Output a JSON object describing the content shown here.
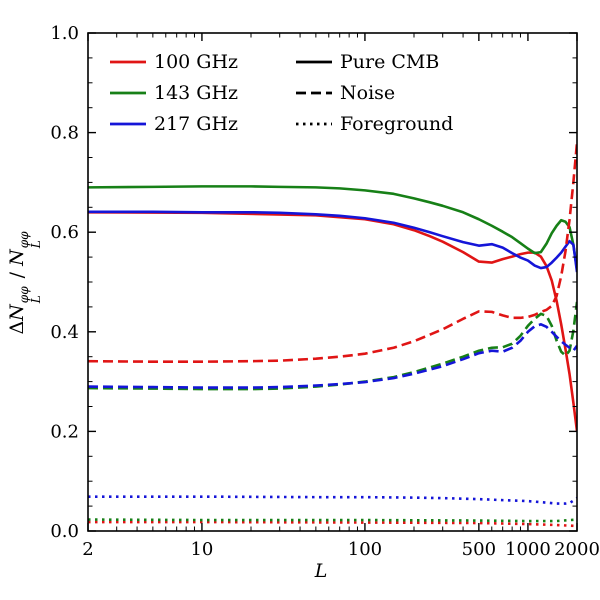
{
  "figure": {
    "background": "#ffffff",
    "frame_color": "#000000"
  },
  "chart_data": {
    "type": "line",
    "title": "",
    "xlabel": "L",
    "ylabel": "ΔN_L^φφ / N_L^φφ",
    "ylabel_parts": {
      "d1": "Δ",
      "n1": "N",
      "sup1": "φφ",
      "sub1": "L",
      "sep": " / ",
      "n2": "N",
      "sup2": "φφ",
      "sub2": "L"
    },
    "x_scale": "log",
    "xlim": [
      2,
      2000
    ],
    "ylim": [
      0.0,
      1.0
    ],
    "grid": false,
    "x_ticks": {
      "major": [
        2,
        10,
        100,
        500,
        1000,
        2000
      ],
      "labels": [
        "2",
        "10",
        "100",
        "500",
        "1000",
        "2000"
      ],
      "minor": [
        3,
        4,
        5,
        6,
        7,
        8,
        9,
        20,
        30,
        40,
        50,
        60,
        70,
        80,
        90,
        200,
        300,
        400,
        600,
        700,
        800,
        900
      ]
    },
    "y_ticks": {
      "major": [
        0.0,
        0.2,
        0.4,
        0.6,
        0.8,
        1.0
      ],
      "labels": [
        "0.0",
        "0.2",
        "0.4",
        "0.6",
        "0.8",
        "1.0"
      ],
      "minor_step": 0.05
    },
    "legend": {
      "position": "upper left",
      "frequencies": [
        {
          "label": "100 GHz",
          "color": "#e01515",
          "dash": "solid"
        },
        {
          "label": "143 GHz",
          "color": "#178017",
          "dash": "solid"
        },
        {
          "label": "217 GHz",
          "color": "#1515d8",
          "dash": "solid"
        }
      ],
      "styles": [
        {
          "label": "Pure CMB",
          "color": "#000000",
          "dash": "solid"
        },
        {
          "label": "Noise",
          "color": "#000000",
          "dash": "dashed"
        },
        {
          "label": "Foreground",
          "color": "#000000",
          "dash": "dotted"
        }
      ]
    },
    "series": [
      {
        "name": "100 GHz Pure CMB",
        "color": "#e01515",
        "dash": "solid",
        "points": [
          [
            2,
            0.64
          ],
          [
            10,
            0.639
          ],
          [
            50,
            0.634
          ],
          [
            100,
            0.626
          ],
          [
            150,
            0.616
          ],
          [
            200,
            0.604
          ],
          [
            250,
            0.592
          ],
          [
            300,
            0.581
          ],
          [
            400,
            0.56
          ],
          [
            500,
            0.541
          ],
          [
            600,
            0.539
          ],
          [
            700,
            0.546
          ],
          [
            800,
            0.551
          ],
          [
            900,
            0.556
          ],
          [
            1000,
            0.559
          ],
          [
            1100,
            0.559
          ],
          [
            1200,
            0.551
          ],
          [
            1300,
            0.532
          ],
          [
            1400,
            0.503
          ],
          [
            1500,
            0.462
          ],
          [
            1600,
            0.415
          ],
          [
            1700,
            0.365
          ],
          [
            1800,
            0.315
          ],
          [
            1900,
            0.258
          ],
          [
            2000,
            0.2
          ]
        ]
      },
      {
        "name": "143 GHz Pure CMB",
        "color": "#178017",
        "dash": "solid",
        "points": [
          [
            2,
            0.69
          ],
          [
            5,
            0.691
          ],
          [
            10,
            0.692
          ],
          [
            20,
            0.692
          ],
          [
            30,
            0.691
          ],
          [
            50,
            0.69
          ],
          [
            70,
            0.688
          ],
          [
            100,
            0.684
          ],
          [
            150,
            0.677
          ],
          [
            200,
            0.668
          ],
          [
            250,
            0.66
          ],
          [
            300,
            0.653
          ],
          [
            400,
            0.64
          ],
          [
            500,
            0.626
          ],
          [
            600,
            0.613
          ],
          [
            700,
            0.601
          ],
          [
            800,
            0.59
          ],
          [
            900,
            0.578
          ],
          [
            1000,
            0.567
          ],
          [
            1100,
            0.558
          ],
          [
            1200,
            0.56
          ],
          [
            1300,
            0.577
          ],
          [
            1400,
            0.598
          ],
          [
            1500,
            0.613
          ],
          [
            1600,
            0.624
          ],
          [
            1700,
            0.621
          ],
          [
            1800,
            0.61
          ],
          [
            1900,
            0.575
          ],
          [
            2000,
            0.525
          ]
        ]
      },
      {
        "name": "217 GHz Pure CMB",
        "color": "#1515d8",
        "dash": "solid",
        "points": [
          [
            2,
            0.641
          ],
          [
            5,
            0.641
          ],
          [
            10,
            0.64
          ],
          [
            20,
            0.64
          ],
          [
            30,
            0.639
          ],
          [
            50,
            0.636
          ],
          [
            70,
            0.633
          ],
          [
            100,
            0.628
          ],
          [
            150,
            0.619
          ],
          [
            200,
            0.609
          ],
          [
            250,
            0.6
          ],
          [
            300,
            0.592
          ],
          [
            400,
            0.58
          ],
          [
            500,
            0.573
          ],
          [
            600,
            0.576
          ],
          [
            700,
            0.569
          ],
          [
            800,
            0.558
          ],
          [
            900,
            0.549
          ],
          [
            1000,
            0.543
          ],
          [
            1100,
            0.533
          ],
          [
            1200,
            0.528
          ],
          [
            1300,
            0.53
          ],
          [
            1400,
            0.539
          ],
          [
            1500,
            0.549
          ],
          [
            1600,
            0.559
          ],
          [
            1700,
            0.571
          ],
          [
            1800,
            0.582
          ],
          [
            1900,
            0.575
          ],
          [
            2000,
            0.52
          ]
        ]
      },
      {
        "name": "100 GHz Noise",
        "color": "#e01515",
        "dash": "dashed",
        "points": [
          [
            2,
            0.341
          ],
          [
            5,
            0.34
          ],
          [
            10,
            0.34
          ],
          [
            20,
            0.341
          ],
          [
            30,
            0.342
          ],
          [
            50,
            0.346
          ],
          [
            70,
            0.35
          ],
          [
            100,
            0.356
          ],
          [
            150,
            0.368
          ],
          [
            200,
            0.381
          ],
          [
            300,
            0.405
          ],
          [
            400,
            0.426
          ],
          [
            500,
            0.441
          ],
          [
            600,
            0.44
          ],
          [
            700,
            0.433
          ],
          [
            800,
            0.428
          ],
          [
            900,
            0.428
          ],
          [
            1000,
            0.43
          ],
          [
            1100,
            0.434
          ],
          [
            1200,
            0.44
          ],
          [
            1300,
            0.444
          ],
          [
            1400,
            0.452
          ],
          [
            1500,
            0.472
          ],
          [
            1600,
            0.512
          ],
          [
            1700,
            0.562
          ],
          [
            1800,
            0.625
          ],
          [
            1900,
            0.7
          ],
          [
            2000,
            0.78
          ]
        ]
      },
      {
        "name": "143 GHz Noise",
        "color": "#178017",
        "dash": "dashed",
        "points": [
          [
            2,
            0.287
          ],
          [
            5,
            0.286
          ],
          [
            10,
            0.285
          ],
          [
            20,
            0.285
          ],
          [
            30,
            0.286
          ],
          [
            50,
            0.29
          ],
          [
            70,
            0.294
          ],
          [
            100,
            0.3
          ],
          [
            150,
            0.309
          ],
          [
            200,
            0.319
          ],
          [
            300,
            0.336
          ],
          [
            400,
            0.35
          ],
          [
            500,
            0.362
          ],
          [
            600,
            0.368
          ],
          [
            700,
            0.369
          ],
          [
            800,
            0.376
          ],
          [
            900,
            0.392
          ],
          [
            1000,
            0.412
          ],
          [
            1100,
            0.426
          ],
          [
            1200,
            0.436
          ],
          [
            1300,
            0.432
          ],
          [
            1400,
            0.412
          ],
          [
            1500,
            0.382
          ],
          [
            1600,
            0.36
          ],
          [
            1700,
            0.352
          ],
          [
            1800,
            0.362
          ],
          [
            1900,
            0.402
          ],
          [
            2000,
            0.46
          ]
        ]
      },
      {
        "name": "217 GHz Noise",
        "color": "#1515d8",
        "dash": "dashed",
        "points": [
          [
            2,
            0.29
          ],
          [
            5,
            0.289
          ],
          [
            10,
            0.288
          ],
          [
            20,
            0.288
          ],
          [
            30,
            0.289
          ],
          [
            50,
            0.292
          ],
          [
            70,
            0.295
          ],
          [
            100,
            0.299
          ],
          [
            150,
            0.307
          ],
          [
            200,
            0.316
          ],
          [
            300,
            0.331
          ],
          [
            400,
            0.345
          ],
          [
            500,
            0.357
          ],
          [
            600,
            0.362
          ],
          [
            700,
            0.36
          ],
          [
            800,
            0.368
          ],
          [
            900,
            0.382
          ],
          [
            1000,
            0.4
          ],
          [
            1100,
            0.411
          ],
          [
            1200,
            0.415
          ],
          [
            1300,
            0.41
          ],
          [
            1400,
            0.4
          ],
          [
            1500,
            0.39
          ],
          [
            1600,
            0.381
          ],
          [
            1700,
            0.374
          ],
          [
            1800,
            0.368
          ],
          [
            1900,
            0.362
          ],
          [
            2000,
            0.372
          ]
        ]
      },
      {
        "name": "100 GHz Foreground",
        "color": "#e01515",
        "dash": "dotted",
        "points": [
          [
            2,
            0.018
          ],
          [
            10,
            0.018
          ],
          [
            100,
            0.017
          ],
          [
            500,
            0.016
          ],
          [
            1000,
            0.014
          ],
          [
            1500,
            0.012
          ],
          [
            2000,
            0.01
          ]
        ]
      },
      {
        "name": "143 GHz Foreground",
        "color": "#178017",
        "dash": "dotted",
        "points": [
          [
            2,
            0.023
          ],
          [
            10,
            0.022
          ],
          [
            100,
            0.022
          ],
          [
            500,
            0.021
          ],
          [
            1000,
            0.02
          ],
          [
            1500,
            0.02
          ],
          [
            2000,
            0.023
          ]
        ]
      },
      {
        "name": "217 GHz Foreground",
        "color": "#1515d8",
        "dash": "dotted",
        "points": [
          [
            2,
            0.069
          ],
          [
            10,
            0.069
          ],
          [
            50,
            0.068
          ],
          [
            100,
            0.068
          ],
          [
            200,
            0.067
          ],
          [
            300,
            0.066
          ],
          [
            500,
            0.064
          ],
          [
            700,
            0.062
          ],
          [
            1000,
            0.06
          ],
          [
            1300,
            0.057
          ],
          [
            1500,
            0.055
          ],
          [
            1700,
            0.055
          ],
          [
            1800,
            0.056
          ],
          [
            2000,
            0.066
          ]
        ]
      }
    ]
  }
}
